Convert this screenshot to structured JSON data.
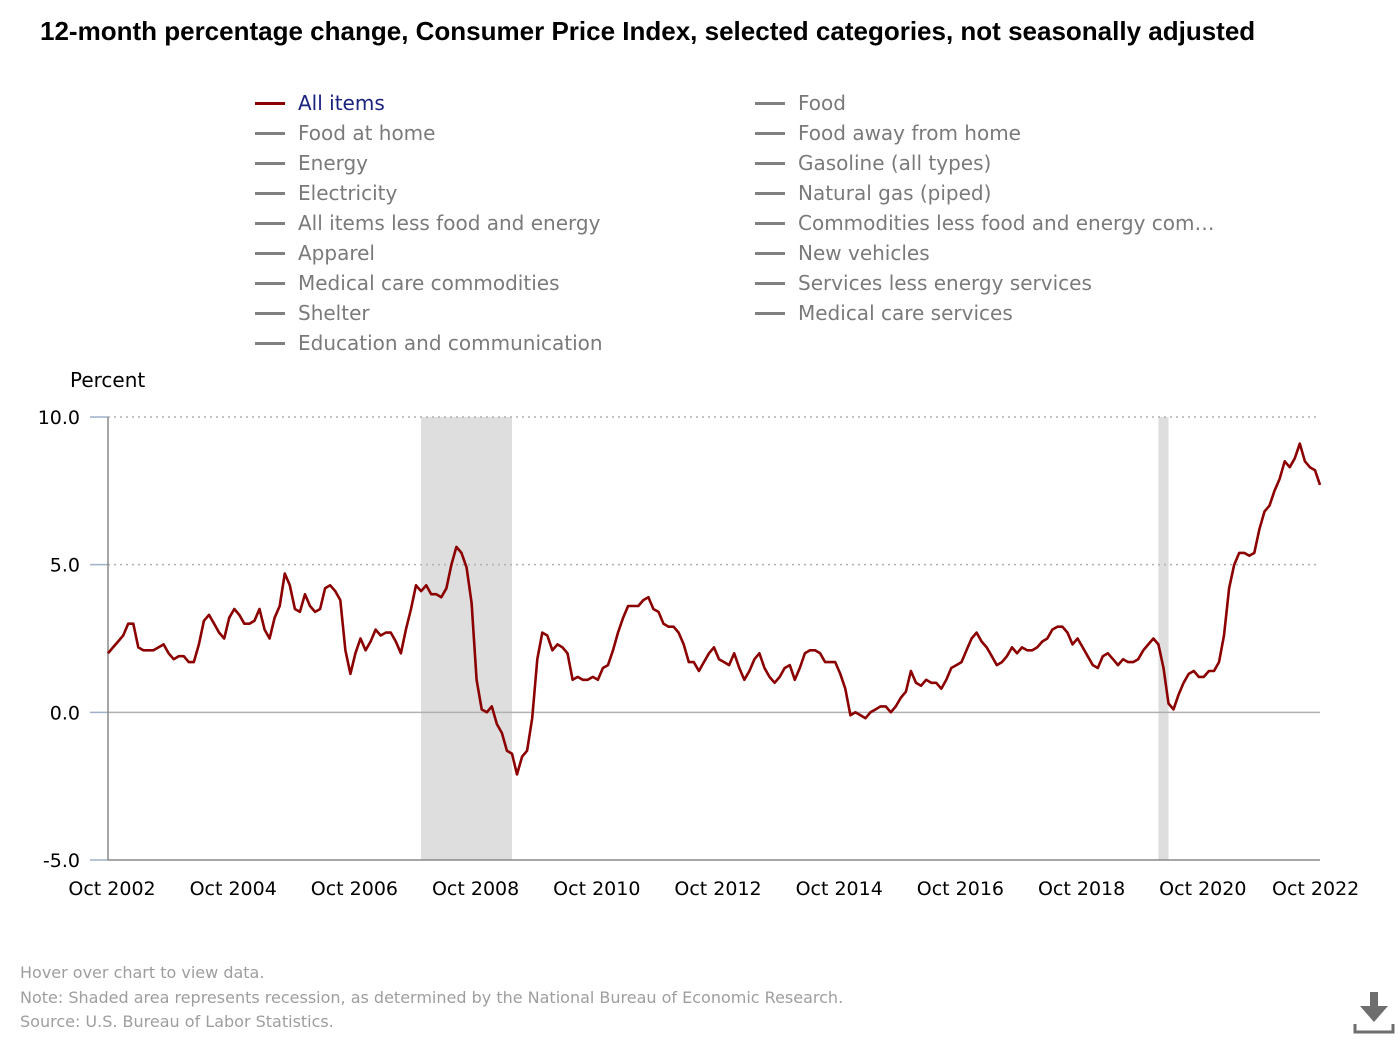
{
  "title": "12-month percentage change, Consumer Price Index, selected categories, not seasonally adjusted",
  "legend": {
    "items": [
      {
        "label": "All items",
        "active": true
      },
      {
        "label": "Food"
      },
      {
        "label": "Food at home"
      },
      {
        "label": "Food away from home"
      },
      {
        "label": "Energy"
      },
      {
        "label": "Gasoline (all types)"
      },
      {
        "label": "Electricity"
      },
      {
        "label": "Natural gas (piped)"
      },
      {
        "label": "All items less food and energy"
      },
      {
        "label": "Commodities less food and energy com…"
      },
      {
        "label": "Apparel"
      },
      {
        "label": "New vehicles"
      },
      {
        "label": "Medical care commodities"
      },
      {
        "label": "Services less energy services"
      },
      {
        "label": "Shelter"
      },
      {
        "label": "Medical care services"
      },
      {
        "label": "Education and communication"
      }
    ]
  },
  "colors": {
    "series": "#8b0000",
    "inactive_legend": "#808080",
    "active_legend_text": "#1a237e",
    "recession": "#dedede",
    "grid": "#b0b0b0",
    "axis": "#888888"
  },
  "chart_data": {
    "type": "line",
    "ylabel": "Percent",
    "ylim": [
      -5.0,
      10.0
    ],
    "yticks": [
      "10.0",
      "5.0",
      "0.0",
      "-5.0"
    ],
    "xticks": [
      "Oct 2002",
      "Oct 2004",
      "Oct 2006",
      "Oct 2008",
      "Oct 2010",
      "Oct 2012",
      "Oct 2014",
      "Oct 2016",
      "Oct 2018",
      "Oct 2020",
      "Oct 2022"
    ],
    "x_range": [
      "2002-10",
      "2022-10"
    ],
    "grid": "horizontal dotted",
    "legend_position": "top",
    "recessions": [
      {
        "start": "2007-12",
        "end": "2009-06"
      },
      {
        "start": "2020-02",
        "end": "2020-04"
      }
    ],
    "series": [
      {
        "name": "All items",
        "start": "2002-10",
        "values": [
          2.0,
          2.2,
          2.4,
          2.6,
          3.0,
          3.0,
          2.2,
          2.1,
          2.1,
          2.1,
          2.2,
          2.3,
          2.0,
          1.8,
          1.9,
          1.9,
          1.7,
          1.7,
          2.3,
          3.1,
          3.3,
          3.0,
          2.7,
          2.5,
          3.2,
          3.5,
          3.3,
          3.0,
          3.0,
          3.1,
          3.5,
          2.8,
          2.5,
          3.2,
          3.6,
          4.7,
          4.3,
          3.5,
          3.4,
          4.0,
          3.6,
          3.4,
          3.5,
          4.2,
          4.3,
          4.1,
          3.8,
          2.1,
          1.3,
          2.0,
          2.5,
          2.1,
          2.4,
          2.8,
          2.6,
          2.7,
          2.7,
          2.4,
          2.0,
          2.8,
          3.5,
          4.3,
          4.1,
          4.3,
          4.0,
          4.0,
          3.9,
          4.2,
          5.0,
          5.6,
          5.4,
          4.9,
          3.7,
          1.1,
          0.1,
          0.0,
          0.2,
          -0.4,
          -0.7,
          -1.3,
          -1.4,
          -2.1,
          -1.5,
          -1.3,
          -0.2,
          1.8,
          2.7,
          2.6,
          2.1,
          2.3,
          2.2,
          2.0,
          1.1,
          1.2,
          1.1,
          1.1,
          1.2,
          1.1,
          1.5,
          1.6,
          2.1,
          2.7,
          3.2,
          3.6,
          3.6,
          3.6,
          3.8,
          3.9,
          3.5,
          3.4,
          3.0,
          2.9,
          2.9,
          2.7,
          2.3,
          1.7,
          1.7,
          1.4,
          1.7,
          2.0,
          2.2,
          1.8,
          1.7,
          1.6,
          2.0,
          1.5,
          1.1,
          1.4,
          1.8,
          2.0,
          1.5,
          1.2,
          1.0,
          1.2,
          1.5,
          1.6,
          1.1,
          1.5,
          2.0,
          2.1,
          2.1,
          2.0,
          1.7,
          1.7,
          1.7,
          1.3,
          0.8,
          -0.1,
          0.0,
          -0.1,
          -0.2,
          0.0,
          0.1,
          0.2,
          0.2,
          0.0,
          0.2,
          0.5,
          0.7,
          1.4,
          1.0,
          0.9,
          1.1,
          1.0,
          1.0,
          0.8,
          1.1,
          1.5,
          1.6,
          1.7,
          2.1,
          2.5,
          2.7,
          2.4,
          2.2,
          1.9,
          1.6,
          1.7,
          1.9,
          2.2,
          2.0,
          2.2,
          2.1,
          2.1,
          2.2,
          2.4,
          2.5,
          2.8,
          2.9,
          2.9,
          2.7,
          2.3,
          2.5,
          2.2,
          1.9,
          1.6,
          1.5,
          1.9,
          2.0,
          1.8,
          1.6,
          1.8,
          1.7,
          1.7,
          1.8,
          2.1,
          2.3,
          2.5,
          2.3,
          1.5,
          0.3,
          0.1,
          0.6,
          1.0,
          1.3,
          1.4,
          1.2,
          1.2,
          1.4,
          1.4,
          1.7,
          2.6,
          4.2,
          5.0,
          5.4,
          5.4,
          5.3,
          5.4,
          6.2,
          6.8,
          7.0,
          7.5,
          7.9,
          8.5,
          8.3,
          8.6,
          9.1,
          8.5,
          8.3,
          8.2,
          7.7
        ]
      }
    ]
  },
  "notes": {
    "hover": "Hover over chart to view data.",
    "note": "Note: Shaded area represents recession, as determined by the National Bureau of Economic Research.",
    "source": "Source: U.S. Bureau of Labor Statistics."
  }
}
